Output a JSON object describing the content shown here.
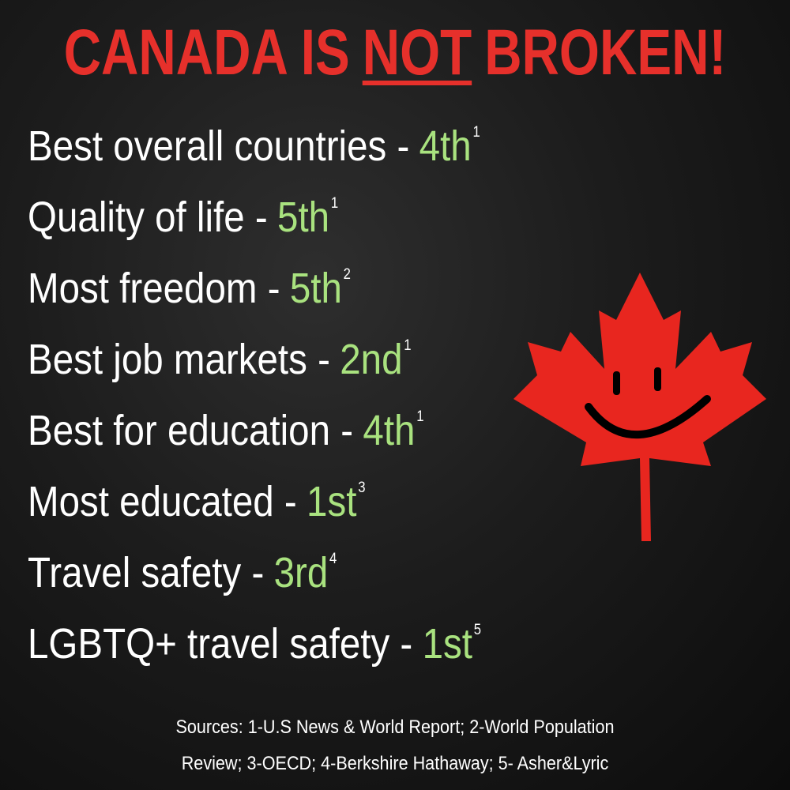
{
  "title": {
    "parts": [
      "CANADA IS",
      "NOT",
      "BROKEN!"
    ]
  },
  "items": [
    {
      "label": "Best overall countries -",
      "rank": "4th",
      "source": "1"
    },
    {
      "label": "Quality of life -",
      "rank": "5th",
      "source": "1"
    },
    {
      "label": "Most freedom -",
      "rank": "5th",
      "source": "2"
    },
    {
      "label": "Best job markets -",
      "rank": "2nd",
      "source": "1"
    },
    {
      "label": "Best for education -",
      "rank": "4th",
      "source": "1"
    },
    {
      "label": "Most educated -",
      "rank": "1st",
      "source": "3"
    },
    {
      "label": "Travel safety -",
      "rank": "3rd",
      "source": "4"
    },
    {
      "label": "LGBTQ+ travel safety -",
      "rank": "1st",
      "source": "5"
    }
  ],
  "sources": [
    "Sources: 1-U.S News & World Report; 2-World Population",
    "Review; 3-OECD; 4-Berkshire Hathaway; 5- Asher&Lyric"
  ]
}
